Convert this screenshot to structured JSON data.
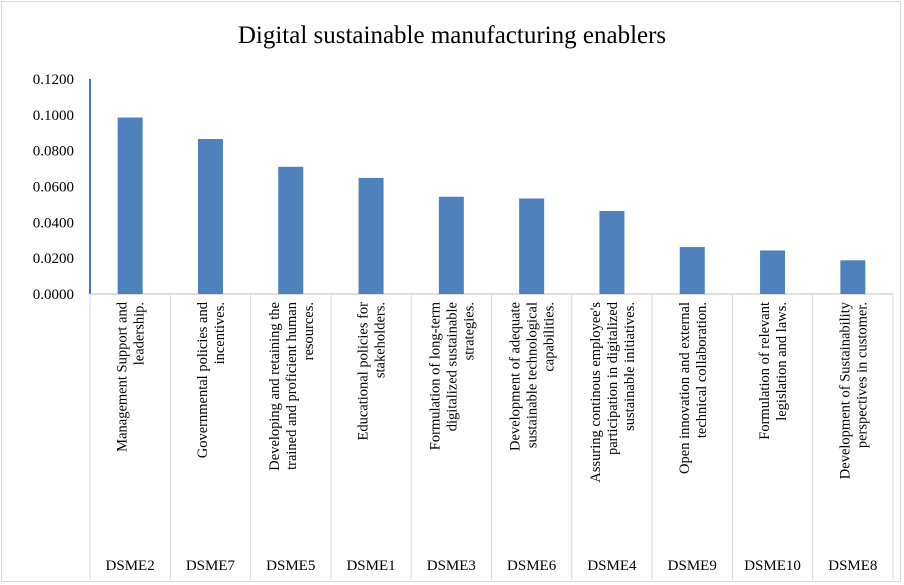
{
  "chart_data": {
    "type": "bar",
    "title": "Digital sustainable manufacturing enablers",
    "xlabel": "",
    "ylabel": "",
    "ylim": [
      0,
      0.12
    ],
    "yticks": [
      "0.0000",
      "0.0200",
      "0.0400",
      "0.0600",
      "0.0800",
      "0.1000",
      "0.1200"
    ],
    "grid": false,
    "legend": "none",
    "bar_color": "#4f81bd",
    "categories": [
      {
        "code": "DSME2",
        "label_lines": [
          "Management Support and",
          "leadership."
        ]
      },
      {
        "code": "DSME7",
        "label_lines": [
          "Governmental policies and",
          "incentives."
        ]
      },
      {
        "code": "DSME5",
        "label_lines": [
          "Developing and retaining the",
          "trained and proficient  human",
          "resources."
        ]
      },
      {
        "code": "DSME1",
        "label_lines": [
          "Educational policies for",
          "stakeholders."
        ]
      },
      {
        "code": "DSME3",
        "label_lines": [
          "Formulation of long-term",
          "digitalized sustainable",
          "strategies."
        ]
      },
      {
        "code": "DSME6",
        "label_lines": [
          "Development of adequate",
          "sustainable technological",
          "capabilities."
        ]
      },
      {
        "code": "DSME4",
        "label_lines": [
          "Assuring continous employee's",
          "participation in digitalized",
          "sustainable initiatives."
        ]
      },
      {
        "code": "DSME9",
        "label_lines": [
          "Open innovation and external",
          "technical collaboration."
        ]
      },
      {
        "code": "DSME10",
        "label_lines": [
          "Formulation of relevant",
          "legislation and laws."
        ]
      },
      {
        "code": "DSME8",
        "label_lines": [
          "Development of Sustainability",
          "perspectives in customer."
        ]
      }
    ],
    "values": [
      0.0985,
      0.0865,
      0.071,
      0.0648,
      0.0543,
      0.0533,
      0.0463,
      0.0262,
      0.0243,
      0.0188
    ]
  }
}
